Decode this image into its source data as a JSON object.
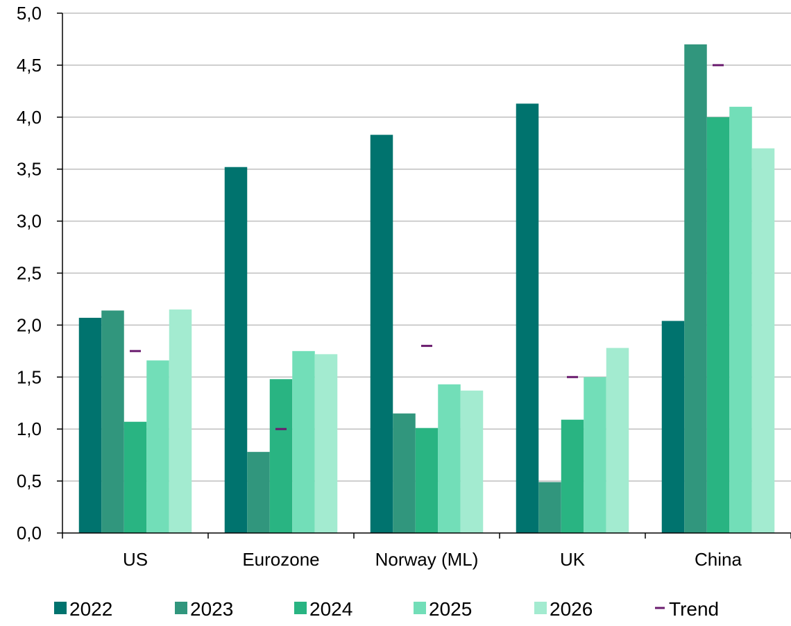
{
  "chart_data": {
    "type": "bar",
    "categories": [
      "US",
      "Eurozone",
      "Norway (ML)",
      "UK",
      "China"
    ],
    "series": [
      {
        "name": "2022",
        "color": "#00736e",
        "values": [
          2.07,
          3.52,
          3.83,
          4.13,
          2.04
        ]
      },
      {
        "name": "2023",
        "color": "#31967d",
        "values": [
          2.14,
          0.78,
          1.15,
          0.49,
          4.7
        ]
      },
      {
        "name": "2024",
        "color": "#29b482",
        "values": [
          1.07,
          1.48,
          1.01,
          1.09,
          4.0
        ]
      },
      {
        "name": "2025",
        "color": "#72deb8",
        "values": [
          1.66,
          1.75,
          1.43,
          1.5,
          4.1
        ]
      },
      {
        "name": "2026",
        "color": "#a3ebd0",
        "values": [
          2.15,
          1.72,
          1.37,
          1.78,
          3.7
        ]
      }
    ],
    "trend": {
      "name": "Trend",
      "color": "#6a1b6e",
      "values": [
        1.75,
        1.0,
        1.8,
        1.5,
        4.5
      ]
    },
    "y_ticks": [
      "0,0",
      "0,5",
      "1,0",
      "1,5",
      "2,0",
      "2,5",
      "3,0",
      "3,5",
      "4,0",
      "4,5",
      "5,0"
    ],
    "ylim": [
      0,
      5
    ],
    "grid": true,
    "legend_position": "bottom",
    "title": "",
    "xlabel": "",
    "ylabel": ""
  }
}
